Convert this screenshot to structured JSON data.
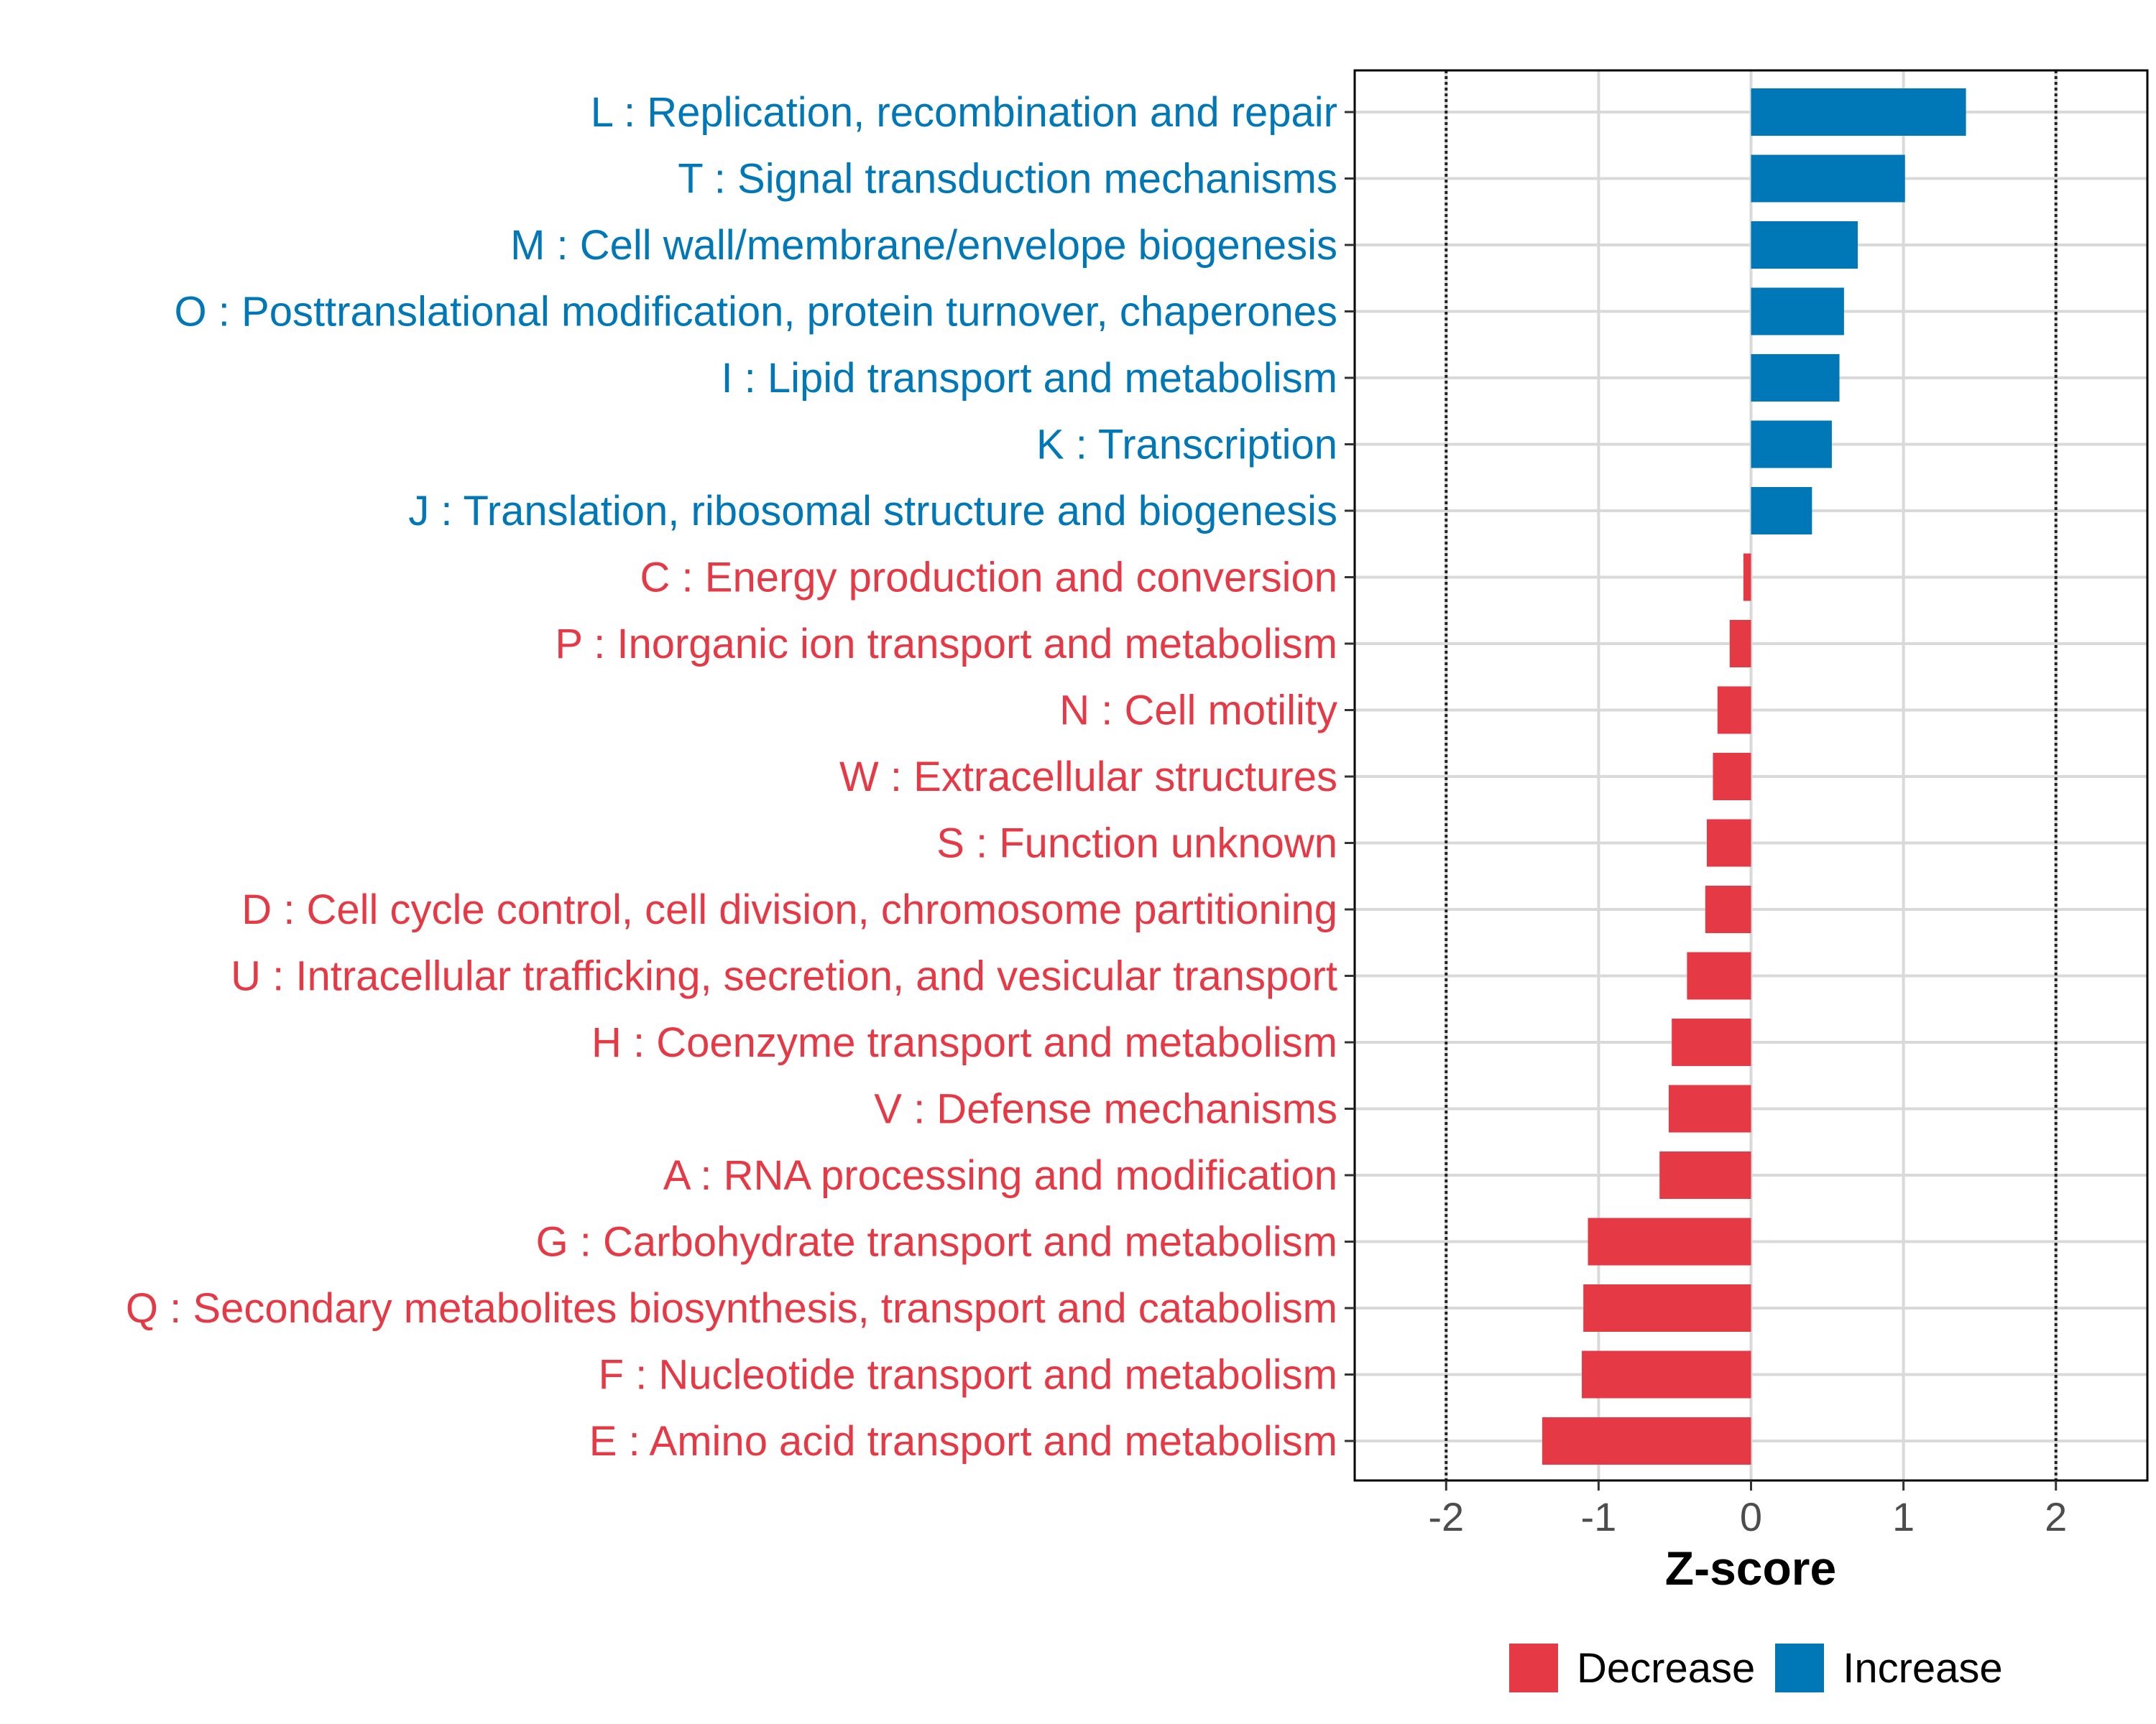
{
  "chart_data": {
    "type": "bar",
    "orientation": "horizontal",
    "xlabel": "Z-score",
    "xlim": [
      -2.6,
      2.6
    ],
    "x_ticks": [
      -2,
      -1,
      0,
      1,
      2
    ],
    "x_tick_labels": [
      "-2",
      "-1",
      "0",
      "1",
      "2"
    ],
    "reference_lines": [
      -2,
      2
    ],
    "grid": true,
    "categories": [
      "L : Replication, recombination and repair",
      "T : Signal transduction mechanisms",
      "M : Cell wall/membrane/envelope biogenesis",
      "O : Posttranslational modification, protein turnover, chaperones",
      "I : Lipid transport and metabolism",
      "K : Transcription",
      "J : Translation, ribosomal structure and biogenesis",
      "C : Energy production and conversion",
      "P : Inorganic ion transport and metabolism",
      "N : Cell motility",
      "W : Extracellular structures",
      "S : Function unknown",
      "D : Cell cycle control, cell division, chromosome partitioning",
      "U : Intracellular trafficking, secretion, and vesicular transport",
      "H : Coenzyme transport and metabolism",
      "V : Defense mechanisms",
      "A : RNA processing and modification",
      "G : Carbohydrate transport and metabolism",
      "Q : Secondary metabolites biosynthesis, transport and catabolism",
      "F : Nucleotide transport and metabolism",
      "E : Amino acid transport and metabolism"
    ],
    "values": [
      1.41,
      1.01,
      0.7,
      0.61,
      0.58,
      0.53,
      0.4,
      -0.05,
      -0.14,
      -0.22,
      -0.25,
      -0.29,
      -0.3,
      -0.42,
      -0.52,
      -0.54,
      -0.6,
      -1.07,
      -1.1,
      -1.11,
      -1.37
    ],
    "groups": [
      "Increase",
      "Increase",
      "Increase",
      "Increase",
      "Increase",
      "Increase",
      "Increase",
      "Decrease",
      "Decrease",
      "Decrease",
      "Decrease",
      "Decrease",
      "Decrease",
      "Decrease",
      "Decrease",
      "Decrease",
      "Decrease",
      "Decrease",
      "Decrease",
      "Decrease",
      "Decrease"
    ],
    "legend": [
      {
        "label": "Decrease",
        "color": "#e63946"
      },
      {
        "label": "Increase",
        "color": "#0077b6"
      }
    ],
    "legend_position": "bottom"
  },
  "colors": {
    "increase": "#0077b6",
    "decrease": "#e63946"
  }
}
